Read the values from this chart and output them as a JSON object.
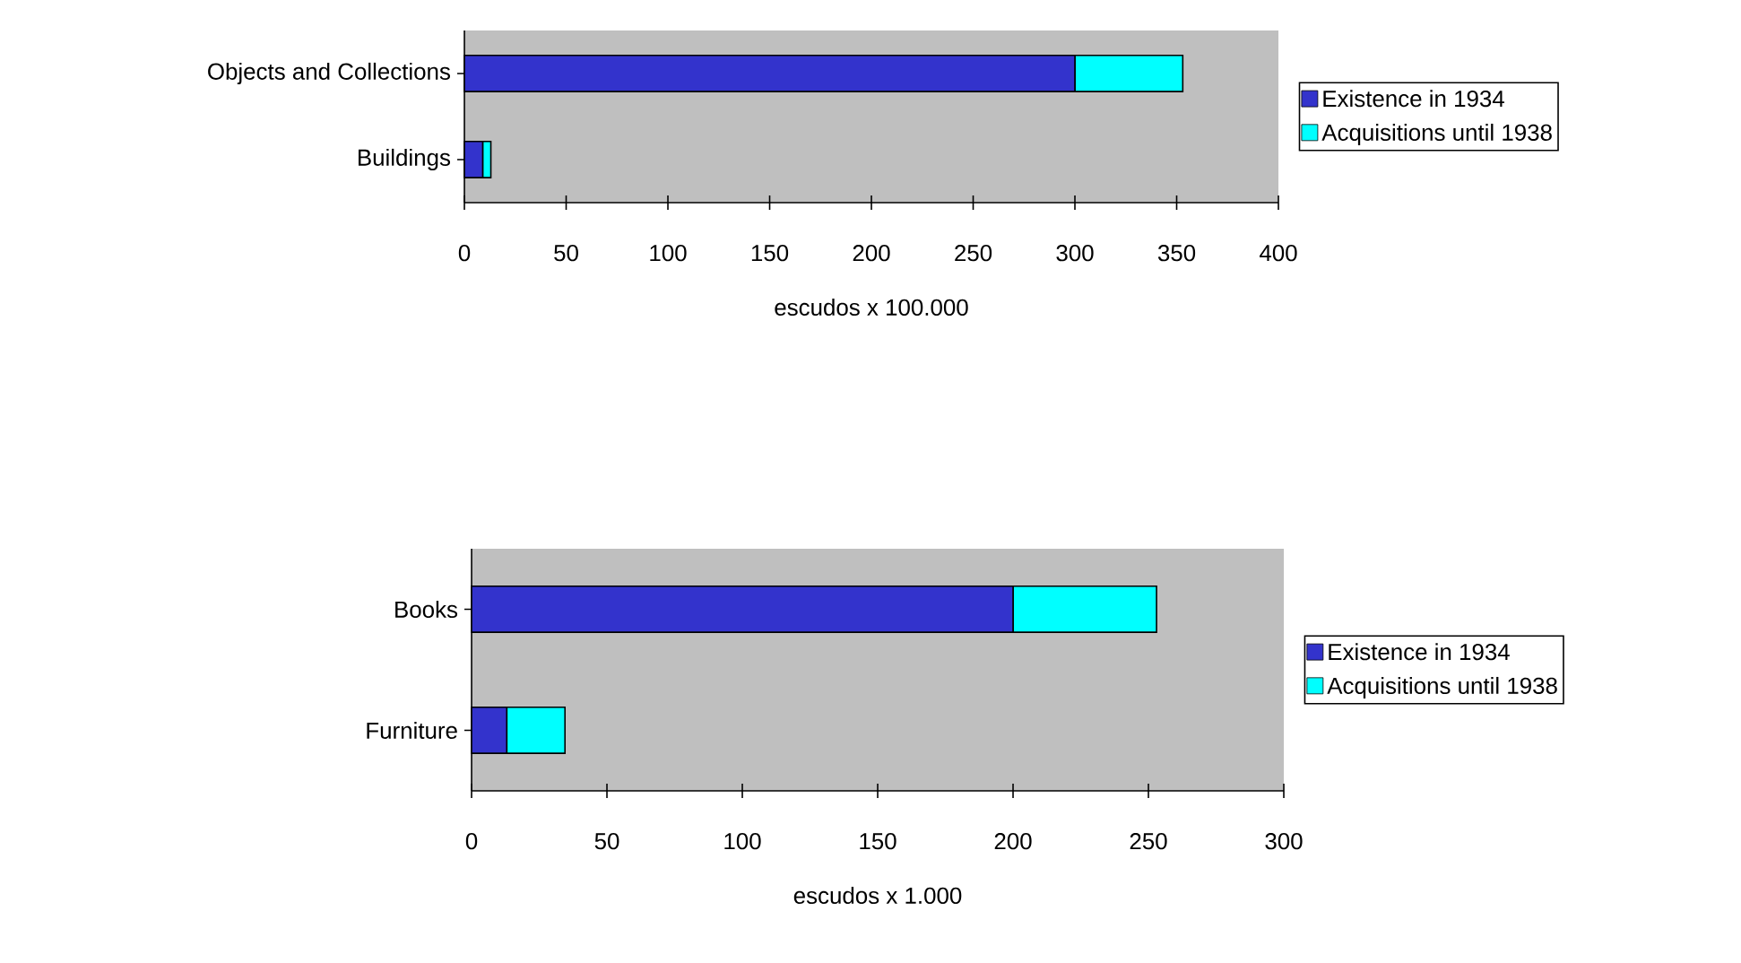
{
  "chart_data": [
    {
      "type": "bar",
      "orientation": "horizontal",
      "stacked": true,
      "categories": [
        "Objects and Collections",
        "Buildings"
      ],
      "series": [
        {
          "name": "Existence in 1934",
          "color": "#3333cc",
          "values": [
            300,
            9
          ]
        },
        {
          "name": "Acquisitions until 1938",
          "color": "#00ffff",
          "values": [
            53,
            4
          ]
        }
      ],
      "xlabel": "escudos x 100.000",
      "xlim": [
        0,
        400
      ],
      "xticks": [
        0,
        50,
        100,
        150,
        200,
        250,
        300,
        350,
        400
      ],
      "legend": "right"
    },
    {
      "type": "bar",
      "orientation": "horizontal",
      "stacked": true,
      "categories": [
        "Books",
        "Furniture"
      ],
      "series": [
        {
          "name": "Existence in 1934",
          "color": "#3333cc",
          "values": [
            200,
            13
          ]
        },
        {
          "name": "Acquisitions until 1938",
          "color": "#00ffff",
          "values": [
            53,
            21.5
          ]
        }
      ],
      "xlabel": "escudos x 1.000",
      "xlim": [
        0,
        300
      ],
      "xticks": [
        0,
        50,
        100,
        150,
        200,
        250,
        300
      ],
      "legend": "right"
    }
  ]
}
